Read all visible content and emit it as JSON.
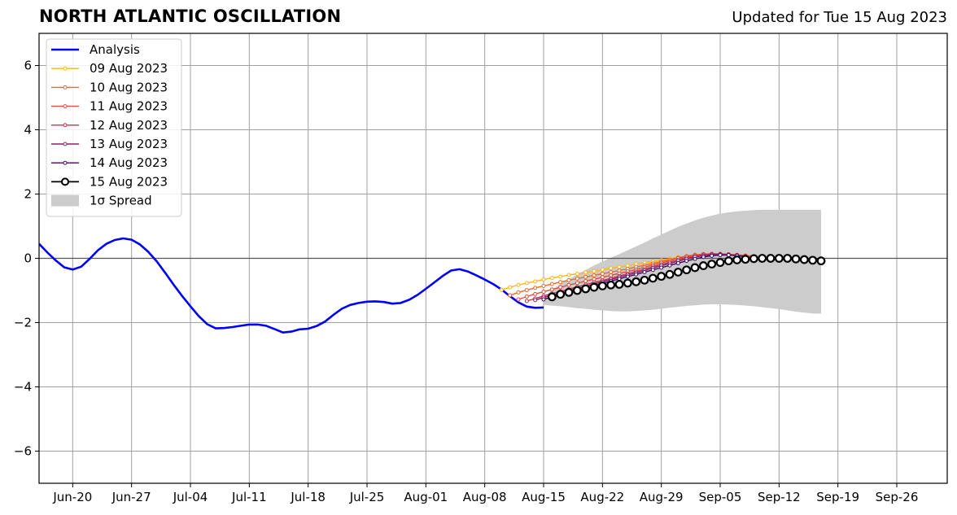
{
  "header": {
    "title": "NORTH ATLANTIC OSCILLATION",
    "updated": "Updated for Tue 15 Aug 2023"
  },
  "chart_data": {
    "type": "line",
    "title": "NORTH ATLANTIC OSCILLATION",
    "xlabel": "",
    "ylabel": "",
    "ylim": [
      -7,
      7
    ],
    "yticks": [
      -6,
      -4,
      -2,
      0,
      2,
      4,
      6
    ],
    "ytick_labels": [
      "−6",
      "−4",
      "−2",
      "0",
      "2",
      "4",
      "6"
    ],
    "xlim": [
      "2023-06-16",
      "2023-10-02"
    ],
    "xtick_dates": [
      "2023-06-20",
      "2023-06-27",
      "2023-07-04",
      "2023-07-11",
      "2023-07-18",
      "2023-07-25",
      "2023-08-01",
      "2023-08-08",
      "2023-08-15",
      "2023-08-22",
      "2023-08-29",
      "2023-09-05",
      "2023-09-12",
      "2023-09-19",
      "2023-09-26"
    ],
    "xtick_labels": [
      "Jun-20",
      "Jun-27",
      "Jul-04",
      "Jul-11",
      "Jul-18",
      "Jul-25",
      "Aug-01",
      "Aug-08",
      "Aug-15",
      "Aug-22",
      "Aug-29",
      "Sep-05",
      "Sep-12",
      "Sep-19",
      "Sep-26"
    ],
    "grid": true,
    "legend_position": "top-left",
    "analysis": {
      "name": "Analysis",
      "color": "#0000ff",
      "start": "2023-06-16",
      "values": [
        0.45,
        0.18,
        -0.07,
        -0.28,
        -0.35,
        -0.26,
        -0.02,
        0.25,
        0.45,
        0.57,
        0.62,
        0.58,
        0.43,
        0.2,
        -0.1,
        -0.45,
        -0.82,
        -1.17,
        -1.49,
        -1.8,
        -2.05,
        -2.18,
        -2.17,
        -2.14,
        -2.1,
        -2.06,
        -2.06,
        -2.1,
        -2.2,
        -2.31,
        -2.28,
        -2.21,
        -2.19,
        -2.11,
        -1.97,
        -1.76,
        -1.57,
        -1.45,
        -1.39,
        -1.35,
        -1.34,
        -1.36,
        -1.41,
        -1.39,
        -1.29,
        -1.14,
        -0.95,
        -0.75,
        -0.55,
        -0.38,
        -0.34,
        -0.41,
        -0.53,
        -0.66,
        -0.8,
        -0.97,
        -1.18,
        -1.37,
        -1.5,
        -1.54,
        -1.53
      ]
    },
    "forecasts": [
      {
        "name": "09 Aug 2023",
        "color": "#fbb61a",
        "start": "2023-08-10",
        "values": [
          -0.98,
          -0.9,
          -0.83,
          -0.77,
          -0.72,
          -0.66,
          -0.61,
          -0.57,
          -0.52,
          -0.48,
          -0.44,
          -0.4,
          -0.35,
          -0.31,
          -0.27,
          -0.23,
          -0.18,
          -0.14,
          -0.1,
          -0.06,
          -0.01,
          0.03,
          0.06,
          0.09,
          0.11,
          0.12,
          0.12,
          0.11,
          0.1,
          0.08,
          0.05,
          0.03
        ]
      },
      {
        "name": "10 Aug 2023",
        "color": "#ed6925",
        "start": "2023-08-11",
        "values": [
          -1.15,
          -1.06,
          -0.99,
          -0.92,
          -0.86,
          -0.8,
          -0.74,
          -0.68,
          -0.63,
          -0.58,
          -0.53,
          -0.48,
          -0.43,
          -0.38,
          -0.33,
          -0.27,
          -0.22,
          -0.16,
          -0.1,
          -0.04,
          0.02,
          0.07,
          0.11,
          0.13,
          0.14,
          0.14,
          0.13,
          0.11,
          0.09,
          0.06,
          0.03
        ]
      },
      {
        "name": "11 Aug 2023",
        "color": "#dd513a",
        "start": "2023-08-12",
        "values": [
          -1.28,
          -1.19,
          -1.11,
          -1.04,
          -0.97,
          -0.9,
          -0.83,
          -0.77,
          -0.71,
          -0.65,
          -0.59,
          -0.53,
          -0.47,
          -0.41,
          -0.35,
          -0.28,
          -0.21,
          -0.14,
          -0.07,
          0.0,
          0.06,
          0.1,
          0.13,
          0.14,
          0.14,
          0.12,
          0.1,
          0.07,
          0.04
        ]
      },
      {
        "name": "12 Aug 2023",
        "color": "#bc3754",
        "start": "2023-08-13",
        "values": [
          -1.33,
          -1.25,
          -1.17,
          -1.1,
          -1.03,
          -0.96,
          -0.89,
          -0.82,
          -0.75,
          -0.69,
          -0.62,
          -0.55,
          -0.48,
          -0.41,
          -0.34,
          -0.26,
          -0.19,
          -0.12,
          -0.05,
          0.02,
          0.07,
          0.11,
          0.13,
          0.13,
          0.12,
          0.1,
          0.07
        ]
      },
      {
        "name": "13 Aug 2023",
        "color": "#8a226a",
        "start": "2023-08-14",
        "values": [
          -1.3,
          -1.22,
          -1.15,
          -1.08,
          -1.01,
          -0.94,
          -0.87,
          -0.8,
          -0.73,
          -0.66,
          -0.59,
          -0.52,
          -0.45,
          -0.38,
          -0.3,
          -0.23,
          -0.16,
          -0.09,
          -0.02,
          0.04,
          0.08,
          0.11,
          0.12,
          0.11,
          0.09,
          0.06
        ]
      },
      {
        "name": "14 Aug 2023",
        "color": "#420a68",
        "start": "2023-08-15",
        "values": [
          -1.28,
          -1.2,
          -1.13,
          -1.06,
          -0.99,
          -0.92,
          -0.85,
          -0.78,
          -0.71,
          -0.64,
          -0.57,
          -0.5,
          -0.43,
          -0.36,
          -0.29,
          -0.22,
          -0.15,
          -0.08,
          -0.02,
          0.04,
          0.08,
          0.1,
          0.1,
          0.08,
          0.05
        ]
      }
    ],
    "current_forecast": {
      "name": "15 Aug 2023",
      "color": "#000000",
      "marker_fill": "#ffffff",
      "start": "2023-08-16",
      "values": [
        -1.2,
        -1.12,
        -1.06,
        -1.0,
        -0.95,
        -0.9,
        -0.86,
        -0.83,
        -0.81,
        -0.77,
        -0.73,
        -0.68,
        -0.62,
        -0.56,
        -0.5,
        -0.43,
        -0.36,
        -0.29,
        -0.23,
        -0.18,
        -0.13,
        -0.08,
        -0.05,
        -0.03,
        -0.01,
        0.0,
        0.0,
        0.0,
        0.0,
        -0.02,
        -0.04,
        -0.06,
        -0.08
      ]
    },
    "spread": {
      "name": "1σ Spread",
      "color": "#cccccc",
      "start": "2023-08-15",
      "upper": [
        -1.22,
        -0.98,
        -0.8,
        -0.65,
        -0.5,
        -0.36,
        -0.22,
        -0.1,
        0.02,
        0.13,
        0.25,
        0.37,
        0.49,
        0.62,
        0.74,
        0.86,
        0.98,
        1.08,
        1.18,
        1.26,
        1.33,
        1.39,
        1.43,
        1.46,
        1.48,
        1.5,
        1.51,
        1.51,
        1.51,
        1.51,
        1.51,
        1.51,
        1.51,
        1.51
      ],
      "lower": [
        -1.45,
        -1.47,
        -1.49,
        -1.52,
        -1.55,
        -1.57,
        -1.6,
        -1.62,
        -1.64,
        -1.65,
        -1.65,
        -1.64,
        -1.62,
        -1.6,
        -1.57,
        -1.54,
        -1.51,
        -1.48,
        -1.46,
        -1.44,
        -1.43,
        -1.43,
        -1.44,
        -1.45,
        -1.47,
        -1.49,
        -1.52,
        -1.55,
        -1.58,
        -1.62,
        -1.66,
        -1.69,
        -1.72,
        -1.72
      ]
    }
  }
}
